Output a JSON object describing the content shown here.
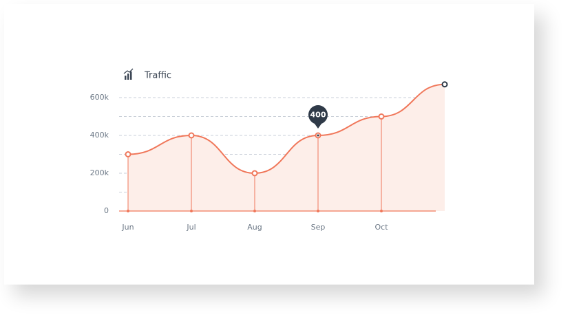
{
  "chart_data": {
    "type": "line",
    "title": "Traffic",
    "categories": [
      "Jun",
      "Jul",
      "Aug",
      "Sep",
      "Oct",
      null
    ],
    "values": [
      300,
      400,
      200,
      400,
      500,
      670
    ],
    "color": "#f0775a",
    "fill_color": "#fdeee9",
    "ylim": [
      0,
      700
    ],
    "yticks": [
      {
        "value": 0,
        "label": "0"
      },
      {
        "value": 200,
        "label": "200k"
      },
      {
        "value": 400,
        "label": "400k"
      },
      {
        "value": 600,
        "label": "600k"
      }
    ],
    "minor_yticks": [
      100,
      300,
      500
    ],
    "grid": true,
    "tooltip_index": 3
  }
}
